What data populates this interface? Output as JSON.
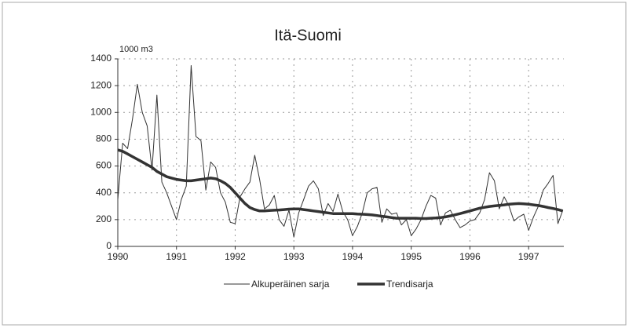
{
  "chart_data": {
    "type": "line",
    "title": "Itä-Suomi",
    "y_axis_label": "1000 m3",
    "x": [
      1990,
      1990.083,
      1990.167,
      1990.25,
      1990.333,
      1990.417,
      1990.5,
      1990.583,
      1990.667,
      1990.75,
      1990.833,
      1990.917,
      1991,
      1991.083,
      1991.167,
      1991.25,
      1991.333,
      1991.417,
      1991.5,
      1991.583,
      1991.667,
      1991.75,
      1991.833,
      1991.917,
      1992,
      1992.083,
      1992.167,
      1992.25,
      1992.333,
      1992.417,
      1992.5,
      1992.583,
      1992.667,
      1992.75,
      1992.833,
      1992.917,
      1993,
      1993.083,
      1993.167,
      1993.25,
      1993.333,
      1993.417,
      1993.5,
      1993.583,
      1993.667,
      1993.75,
      1993.833,
      1993.917,
      1994,
      1994.083,
      1994.167,
      1994.25,
      1994.333,
      1994.417,
      1994.5,
      1994.583,
      1994.667,
      1994.75,
      1994.833,
      1994.917,
      1995,
      1995.083,
      1995.167,
      1995.25,
      1995.333,
      1995.417,
      1995.5,
      1995.583,
      1995.667,
      1995.75,
      1995.833,
      1995.917,
      1996,
      1996.083,
      1996.167,
      1996.25,
      1996.333,
      1996.417,
      1996.5,
      1996.583,
      1996.667,
      1996.75,
      1996.833,
      1996.917,
      1997,
      1997.083,
      1997.167,
      1997.25,
      1997.333,
      1997.417,
      1997.5,
      1997.583
    ],
    "series": [
      {
        "name": "Alkuperäinen sarja",
        "color": "#333333",
        "width": 1,
        "values": [
          350,
          770,
          730,
          950,
          1210,
          1000,
          900,
          570,
          1130,
          480,
          400,
          300,
          200,
          350,
          450,
          1350,
          820,
          790,
          420,
          630,
          590,
          400,
          330,
          180,
          170,
          370,
          430,
          480,
          680,
          500,
          280,
          310,
          380,
          200,
          150,
          270,
          70,
          250,
          350,
          450,
          490,
          430,
          230,
          320,
          260,
          390,
          260,
          200,
          80,
          150,
          250,
          400,
          430,
          440,
          180,
          280,
          240,
          250,
          160,
          200,
          80,
          130,
          200,
          300,
          380,
          360,
          160,
          250,
          270,
          200,
          140,
          160,
          190,
          200,
          250,
          350,
          550,
          490,
          280,
          370,
          300,
          190,
          220,
          240,
          120,
          220,
          300,
          420,
          470,
          530,
          170,
          270
        ]
      },
      {
        "name": "Trendisarja",
        "color": "#333333",
        "width": 3.5,
        "values": [
          720,
          710,
          690,
          670,
          650,
          630,
          610,
          590,
          560,
          540,
          520,
          510,
          500,
          495,
          490,
          490,
          495,
          500,
          505,
          510,
          505,
          490,
          470,
          440,
          400,
          360,
          320,
          290,
          275,
          265,
          265,
          268,
          270,
          272,
          275,
          278,
          280,
          280,
          275,
          270,
          265,
          260,
          255,
          250,
          245,
          245,
          245,
          245,
          245,
          242,
          240,
          238,
          235,
          230,
          225,
          220,
          215,
          210,
          210,
          210,
          210,
          210,
          208,
          208,
          210,
          212,
          215,
          220,
          228,
          236,
          245,
          255,
          265,
          275,
          285,
          292,
          298,
          302,
          306,
          310,
          315,
          318,
          320,
          318,
          315,
          310,
          305,
          298,
          290,
          283,
          275,
          265
        ]
      }
    ],
    "xlim": [
      1990,
      1997.6
    ],
    "xticks": [
      1990,
      1991,
      1992,
      1993,
      1994,
      1995,
      1996,
      1997
    ],
    "ylim": [
      0,
      1400
    ],
    "yticks": [
      0,
      200,
      400,
      600,
      800,
      1000,
      1200,
      1400
    ],
    "grid": true,
    "legend": "bottom"
  }
}
